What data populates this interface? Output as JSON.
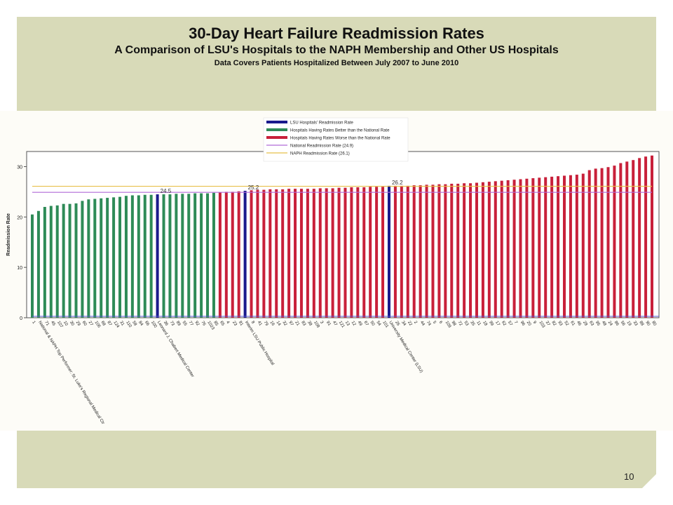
{
  "slide": {
    "title": "30-Day Heart Failure Readmission Rates",
    "subtitle": "A Comparison of LSU's Hospitals to the NAPH Membership and Other US Hospitals",
    "note": "Data Covers Patients Hospitalized Between July 2007 to June 2010",
    "page_number": "10"
  },
  "chart_data": {
    "type": "bar",
    "ylabel": "Readmission Rate",
    "xlabel": "",
    "ylim": [
      0,
      33
    ],
    "yticks": [
      0,
      10,
      20,
      30
    ],
    "legend_position": "top-center",
    "legend": [
      {
        "label": "LSU Hospitals' Readmission Rate",
        "color": "#1a1a8c",
        "kind": "bar"
      },
      {
        "label": "Hospitals Having Rates Better than the National Rate",
        "color": "#2e8b57",
        "kind": "bar"
      },
      {
        "label": "Hospitals Having Rates Worse than the National Rate",
        "color": "#c8203a",
        "kind": "bar"
      },
      {
        "label": "National Readmission Rate (24.9)",
        "color": "#b06ad8",
        "kind": "line"
      },
      {
        "label": "NAPH Readmission Rate (26.1)",
        "color": "#e8c04a",
        "kind": "line"
      }
    ],
    "reference_lines": [
      {
        "name": "National Readmission Rate (24.9)",
        "value": 24.9,
        "color": "#b06ad8"
      },
      {
        "name": "NAPH Readmission Rate (26.1)",
        "value": 26.1,
        "color": "#e8c04a"
      }
    ],
    "categories": [
      "1",
      "National & NAPH Top Performer: St. Luke's Regional Medical Ctr",
      "71",
      "45",
      "107",
      "10",
      "30",
      "29",
      "60",
      "27",
      "106",
      "68",
      "87",
      "124",
      "31",
      "110",
      "58",
      "84",
      "66",
      "100",
      "Leonard J. Chabert Medical Center",
      "36",
      "73",
      "89",
      "55",
      "77",
      "92",
      "76",
      "1023",
      "85",
      "65",
      "4",
      "23",
      "81",
      "Interim LSU Public Hospital",
      "8",
      "41",
      "79",
      "16",
      "14",
      "32",
      "97",
      "21",
      "83",
      "38",
      "108",
      "3",
      "91",
      "47",
      "121",
      "13",
      "12",
      "49",
      "67",
      "50",
      "54",
      "101",
      "University Medical Center (LSU)",
      "26",
      "34",
      "22",
      "2",
      "44",
      "74",
      "5",
      "6",
      "109",
      "98",
      "72",
      "53",
      "35",
      "11",
      "18",
      "99",
      "17",
      "62",
      "57",
      "7",
      "96",
      "20",
      "9",
      "103",
      "37",
      "82",
      "93",
      "52",
      "61",
      "46",
      "28",
      "63",
      "95",
      "48",
      "24",
      "86",
      "56",
      "19",
      "33",
      "88",
      "90",
      "80"
    ],
    "values": [
      20.5,
      21.2,
      22.0,
      22.2,
      22.3,
      22.6,
      22.6,
      22.7,
      23.2,
      23.5,
      23.6,
      23.7,
      23.8,
      23.9,
      24.0,
      24.2,
      24.3,
      24.3,
      24.4,
      24.4,
      24.5,
      24.5,
      24.5,
      24.6,
      24.6,
      24.6,
      24.7,
      24.7,
      24.7,
      24.8,
      24.9,
      25.0,
      25.0,
      25.1,
      25.2,
      25.3,
      25.4,
      25.4,
      25.5,
      25.5,
      25.5,
      25.6,
      25.6,
      25.6,
      25.6,
      25.6,
      25.7,
      25.7,
      25.7,
      25.8,
      25.8,
      25.9,
      25.9,
      25.9,
      26.0,
      26.0,
      26.0,
      26.2,
      26.2,
      26.2,
      26.2,
      26.3,
      26.3,
      26.4,
      26.4,
      26.5,
      26.5,
      26.6,
      26.6,
      26.7,
      26.7,
      26.8,
      26.9,
      27.0,
      27.1,
      27.2,
      27.3,
      27.4,
      27.5,
      27.6,
      27.7,
      27.8,
      27.9,
      28.0,
      28.1,
      28.2,
      28.3,
      28.4,
      28.6,
      29.3,
      29.6,
      29.7,
      29.9,
      30.2,
      30.7,
      31.0,
      31.3,
      31.7,
      32.0,
      32.2
    ],
    "bar_classes": [
      "better",
      "better",
      "better",
      "better",
      "better",
      "better",
      "better",
      "better",
      "better",
      "better",
      "better",
      "better",
      "better",
      "better",
      "better",
      "better",
      "better",
      "better",
      "better",
      "better",
      "lsu",
      "better",
      "better",
      "better",
      "better",
      "better",
      "better",
      "better",
      "better",
      "better",
      "worse",
      "worse",
      "worse",
      "worse",
      "lsu",
      "worse",
      "worse",
      "worse",
      "worse",
      "worse",
      "worse",
      "worse",
      "worse",
      "worse",
      "worse",
      "worse",
      "worse",
      "worse",
      "worse",
      "worse",
      "worse",
      "worse",
      "worse",
      "worse",
      "worse",
      "worse",
      "worse",
      "lsu",
      "worse",
      "worse",
      "worse",
      "worse",
      "worse",
      "worse",
      "worse",
      "worse",
      "worse",
      "worse",
      "worse",
      "worse",
      "worse",
      "worse",
      "worse",
      "worse",
      "worse",
      "worse",
      "worse",
      "worse",
      "worse",
      "worse",
      "worse",
      "worse",
      "worse",
      "worse",
      "worse",
      "worse",
      "worse",
      "worse",
      "worse",
      "worse",
      "worse",
      "worse",
      "worse",
      "worse",
      "worse",
      "worse",
      "worse",
      "worse",
      "worse",
      "worse"
    ],
    "data_labels": [
      {
        "index": 20,
        "text": "24.5"
      },
      {
        "index": 34,
        "text": "25.2"
      },
      {
        "index": 57,
        "text": "26.2"
      }
    ],
    "colors": {
      "better": "#2e8b57",
      "worse": "#c8203a",
      "lsu": "#1a1a8c",
      "baseline": "#5a5ad0",
      "axis": "#555555"
    }
  }
}
